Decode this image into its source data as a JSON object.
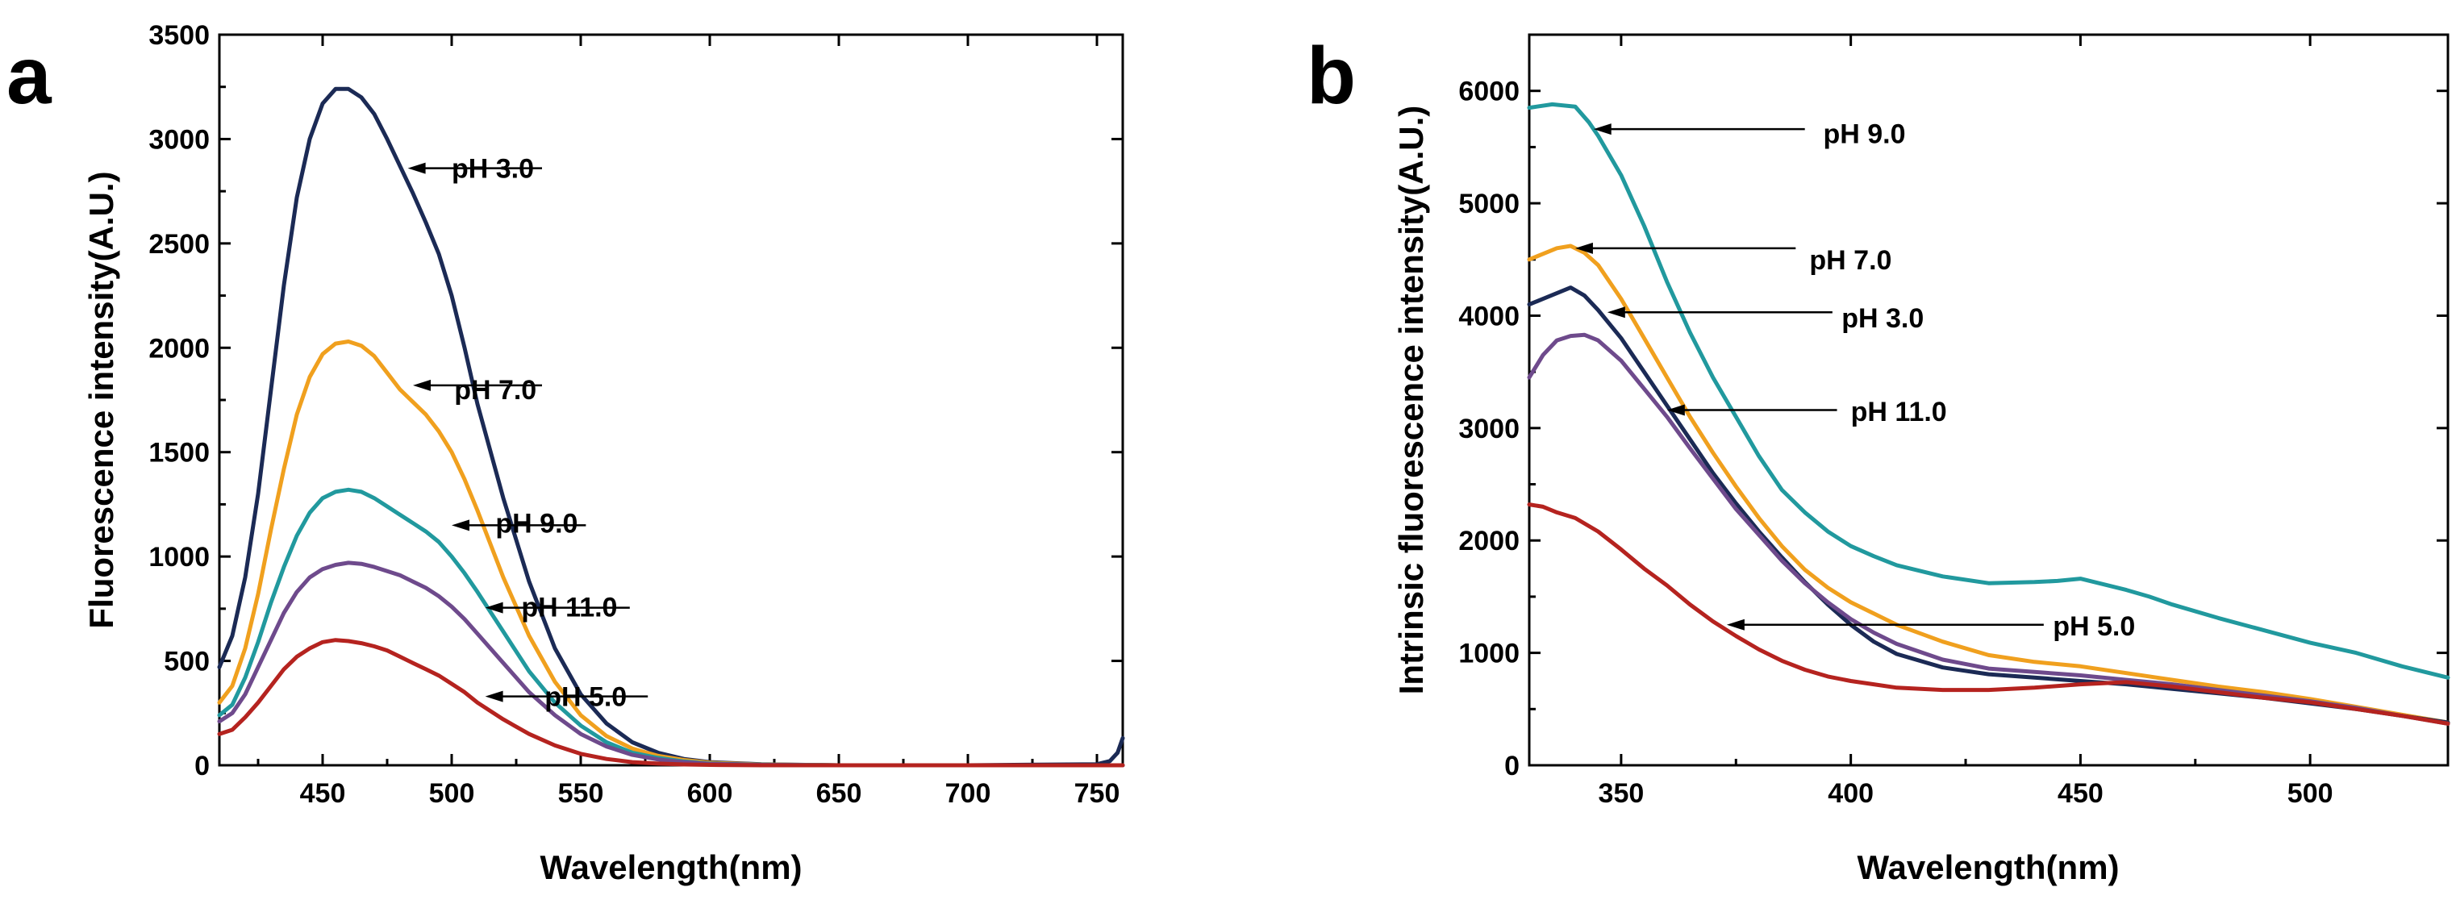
{
  "chart_data": [
    {
      "type": "line",
      "panel": "a",
      "title": "",
      "xlabel": "Wavelength(nm)",
      "ylabel": "Fluorescence intensity(A.U.)",
      "xlim": [
        410,
        760
      ],
      "ylim": [
        0,
        3500
      ],
      "xticks": [
        450,
        500,
        550,
        600,
        650,
        700,
        750
      ],
      "yticks": [
        0,
        500,
        1000,
        1500,
        2000,
        2500,
        3000,
        3500
      ],
      "series": [
        {
          "name": "pH 3.0",
          "color": "#1b2a55",
          "x": [
            410,
            415,
            420,
            425,
            430,
            435,
            440,
            445,
            450,
            455,
            460,
            465,
            470,
            475,
            480,
            485,
            490,
            495,
            500,
            505,
            510,
            520,
            530,
            540,
            550,
            560,
            570,
            580,
            590,
            600,
            620,
            650,
            700,
            750,
            755,
            758,
            760
          ],
          "y": [
            470,
            620,
            900,
            1300,
            1800,
            2300,
            2720,
            3000,
            3170,
            3240,
            3240,
            3200,
            3120,
            3000,
            2870,
            2740,
            2600,
            2450,
            2250,
            2000,
            1730,
            1280,
            880,
            560,
            340,
            200,
            110,
            60,
            30,
            15,
            5,
            0,
            0,
            5,
            20,
            60,
            130
          ]
        },
        {
          "name": "pH 7.0",
          "color": "#f0a01e",
          "x": [
            410,
            415,
            420,
            425,
            430,
            435,
            440,
            445,
            450,
            455,
            460,
            465,
            470,
            475,
            480,
            485,
            490,
            495,
            500,
            505,
            510,
            520,
            530,
            540,
            550,
            560,
            570,
            580,
            590,
            600,
            620,
            650,
            700,
            750,
            760
          ],
          "y": [
            300,
            380,
            560,
            820,
            1130,
            1420,
            1680,
            1860,
            1970,
            2020,
            2030,
            2010,
            1960,
            1880,
            1800,
            1740,
            1680,
            1600,
            1500,
            1370,
            1220,
            900,
            620,
            400,
            240,
            140,
            80,
            45,
            25,
            12,
            4,
            0,
            0,
            0,
            0
          ]
        },
        {
          "name": "pH 9.0",
          "color": "#21999e",
          "x": [
            410,
            415,
            420,
            425,
            430,
            435,
            440,
            445,
            450,
            455,
            460,
            465,
            470,
            475,
            480,
            485,
            490,
            495,
            500,
            505,
            510,
            520,
            530,
            540,
            550,
            560,
            570,
            580,
            590,
            600,
            620,
            650,
            700,
            750,
            760
          ],
          "y": [
            240,
            290,
            420,
            590,
            780,
            950,
            1100,
            1210,
            1280,
            1310,
            1320,
            1310,
            1280,
            1240,
            1200,
            1160,
            1120,
            1070,
            1000,
            920,
            830,
            640,
            450,
            300,
            190,
            110,
            60,
            35,
            18,
            8,
            3,
            0,
            0,
            0,
            0
          ]
        },
        {
          "name": "pH 11.0",
          "color": "#6e4a8c",
          "x": [
            410,
            415,
            420,
            425,
            430,
            435,
            440,
            445,
            450,
            455,
            460,
            465,
            470,
            475,
            480,
            485,
            490,
            495,
            500,
            505,
            510,
            520,
            530,
            540,
            550,
            560,
            570,
            580,
            590,
            600,
            620,
            650,
            700,
            750,
            760
          ],
          "y": [
            210,
            250,
            340,
            470,
            600,
            730,
            830,
            900,
            940,
            960,
            970,
            965,
            950,
            930,
            910,
            880,
            850,
            810,
            760,
            700,
            630,
            490,
            350,
            240,
            150,
            90,
            50,
            28,
            15,
            7,
            2,
            0,
            0,
            0,
            0
          ]
        },
        {
          "name": "pH 5.0",
          "color": "#b5231f",
          "x": [
            410,
            415,
            420,
            425,
            430,
            435,
            440,
            445,
            450,
            455,
            460,
            465,
            470,
            475,
            480,
            485,
            490,
            495,
            500,
            505,
            510,
            520,
            530,
            540,
            550,
            560,
            570,
            580,
            590,
            600,
            620,
            650,
            700,
            750,
            760
          ],
          "y": [
            150,
            170,
            230,
            300,
            380,
            460,
            520,
            560,
            590,
            600,
            595,
            585,
            570,
            550,
            520,
            490,
            460,
            430,
            390,
            350,
            300,
            220,
            150,
            95,
            55,
            30,
            15,
            8,
            4,
            2,
            0,
            0,
            0,
            0,
            0
          ]
        }
      ],
      "annotations": [
        {
          "text": "pH 3.0",
          "label_x": 500,
          "label_y": 2860,
          "arrow_from_x": 535,
          "arrow_to_x": 483,
          "arrow_y": 2860
        },
        {
          "text": "pH 7.0",
          "label_x": 501,
          "label_y": 1800,
          "arrow_from_x": 535,
          "arrow_to_x": 485,
          "arrow_y": 1820
        },
        {
          "text": "pH 9.0",
          "label_x": 517,
          "label_y": 1160,
          "arrow_from_x": 552,
          "arrow_to_x": 500,
          "arrow_y": 1150
        },
        {
          "text": "pH 11.0",
          "label_x": 527,
          "label_y": 760,
          "arrow_from_x": 569,
          "arrow_to_x": 513,
          "arrow_y": 755
        },
        {
          "text": "pH 5.0",
          "label_x": 536,
          "label_y": 330,
          "arrow_from_x": 576,
          "arrow_to_x": 513,
          "arrow_y": 330
        }
      ]
    },
    {
      "type": "line",
      "panel": "b",
      "title": "",
      "xlabel": "Wavelength(nm)",
      "ylabel": "Intrinsic fluorescence intensity(A.U.)",
      "xlim": [
        330,
        530
      ],
      "ylim": [
        0,
        6500
      ],
      "xticks": [
        350,
        400,
        450,
        500
      ],
      "yticks": [
        0,
        1000,
        2000,
        3000,
        4000,
        5000,
        6000
      ],
      "series": [
        {
          "name": "pH 9.0",
          "color": "#21999e",
          "x": [
            330,
            335,
            340,
            343,
            345,
            350,
            355,
            360,
            365,
            370,
            375,
            380,
            385,
            390,
            395,
            400,
            405,
            410,
            420,
            430,
            440,
            445,
            450,
            455,
            460,
            465,
            470,
            480,
            490,
            500,
            510,
            520,
            530
          ],
          "y": [
            5850,
            5880,
            5860,
            5720,
            5600,
            5250,
            4800,
            4300,
            3850,
            3450,
            3100,
            2750,
            2450,
            2250,
            2080,
            1950,
            1860,
            1780,
            1680,
            1620,
            1630,
            1640,
            1660,
            1610,
            1560,
            1500,
            1430,
            1310,
            1200,
            1090,
            1000,
            880,
            780
          ]
        },
        {
          "name": "pH 7.0",
          "color": "#f0a01e",
          "x": [
            330,
            333,
            336,
            339,
            342,
            345,
            350,
            355,
            360,
            365,
            370,
            375,
            380,
            385,
            390,
            395,
            400,
            405,
            410,
            420,
            430,
            440,
            450,
            460,
            470,
            480,
            490,
            500,
            510,
            520,
            530
          ],
          "y": [
            4500,
            4550,
            4600,
            4620,
            4560,
            4450,
            4150,
            3800,
            3450,
            3100,
            2780,
            2480,
            2200,
            1950,
            1740,
            1580,
            1450,
            1350,
            1250,
            1100,
            980,
            920,
            880,
            820,
            760,
            700,
            650,
            590,
            520,
            450,
            380
          ]
        },
        {
          "name": "pH 3.0",
          "color": "#1b2a55",
          "x": [
            330,
            333,
            336,
            339,
            342,
            345,
            350,
            355,
            360,
            365,
            370,
            375,
            380,
            385,
            390,
            395,
            400,
            405,
            410,
            420,
            430,
            440,
            450,
            460,
            470,
            480,
            490,
            500,
            510,
            520,
            530
          ],
          "y": [
            4100,
            4150,
            4200,
            4250,
            4180,
            4050,
            3800,
            3500,
            3200,
            2900,
            2600,
            2330,
            2080,
            1850,
            1630,
            1430,
            1250,
            1100,
            990,
            870,
            810,
            780,
            750,
            720,
            680,
            640,
            600,
            550,
            500,
            440,
            380
          ]
        },
        {
          "name": "pH 11.0",
          "color": "#6e4a8c",
          "x": [
            330,
            333,
            336,
            339,
            342,
            345,
            350,
            355,
            360,
            365,
            370,
            375,
            380,
            385,
            390,
            395,
            400,
            405,
            410,
            420,
            430,
            440,
            450,
            460,
            470,
            480,
            490,
            500,
            510,
            520,
            530
          ],
          "y": [
            3450,
            3650,
            3780,
            3820,
            3830,
            3780,
            3600,
            3350,
            3100,
            2820,
            2550,
            2280,
            2050,
            1820,
            1620,
            1450,
            1300,
            1180,
            1080,
            940,
            860,
            830,
            800,
            760,
            720,
            670,
            620,
            570,
            510,
            440,
            370
          ]
        },
        {
          "name": "pH 5.0",
          "color": "#b5231f",
          "x": [
            330,
            333,
            336,
            340,
            345,
            350,
            355,
            360,
            365,
            370,
            375,
            380,
            385,
            390,
            395,
            400,
            405,
            410,
            420,
            430,
            440,
            450,
            460,
            470,
            480,
            490,
            500,
            510,
            520,
            530
          ],
          "y": [
            2320,
            2300,
            2250,
            2200,
            2080,
            1920,
            1750,
            1600,
            1430,
            1280,
            1150,
            1030,
            930,
            850,
            790,
            750,
            720,
            690,
            670,
            670,
            690,
            720,
            740,
            700,
            650,
            600,
            560,
            500,
            440,
            370
          ]
        }
      ],
      "annotations": [
        {
          "text": "pH 9.0",
          "label_x": 394,
          "label_y": 5620,
          "arrow_from_x": 390,
          "arrow_to_x": 344,
          "arrow_y": 5660
        },
        {
          "text": "pH 7.0",
          "label_x": 391,
          "label_y": 4500,
          "arrow_from_x": 388,
          "arrow_to_x": 340,
          "arrow_y": 4600
        },
        {
          "text": "pH 3.0",
          "label_x": 398,
          "label_y": 3980,
          "arrow_from_x": 396,
          "arrow_to_x": 347,
          "arrow_y": 4030
        },
        {
          "text": "pH 11.0",
          "label_x": 400,
          "label_y": 3150,
          "arrow_from_x": 397,
          "arrow_to_x": 360,
          "arrow_y": 3160
        },
        {
          "text": "pH 5.0",
          "label_x": 444,
          "label_y": 1240,
          "arrow_from_x": 442,
          "arrow_to_x": 373,
          "arrow_y": 1250
        }
      ]
    }
  ]
}
